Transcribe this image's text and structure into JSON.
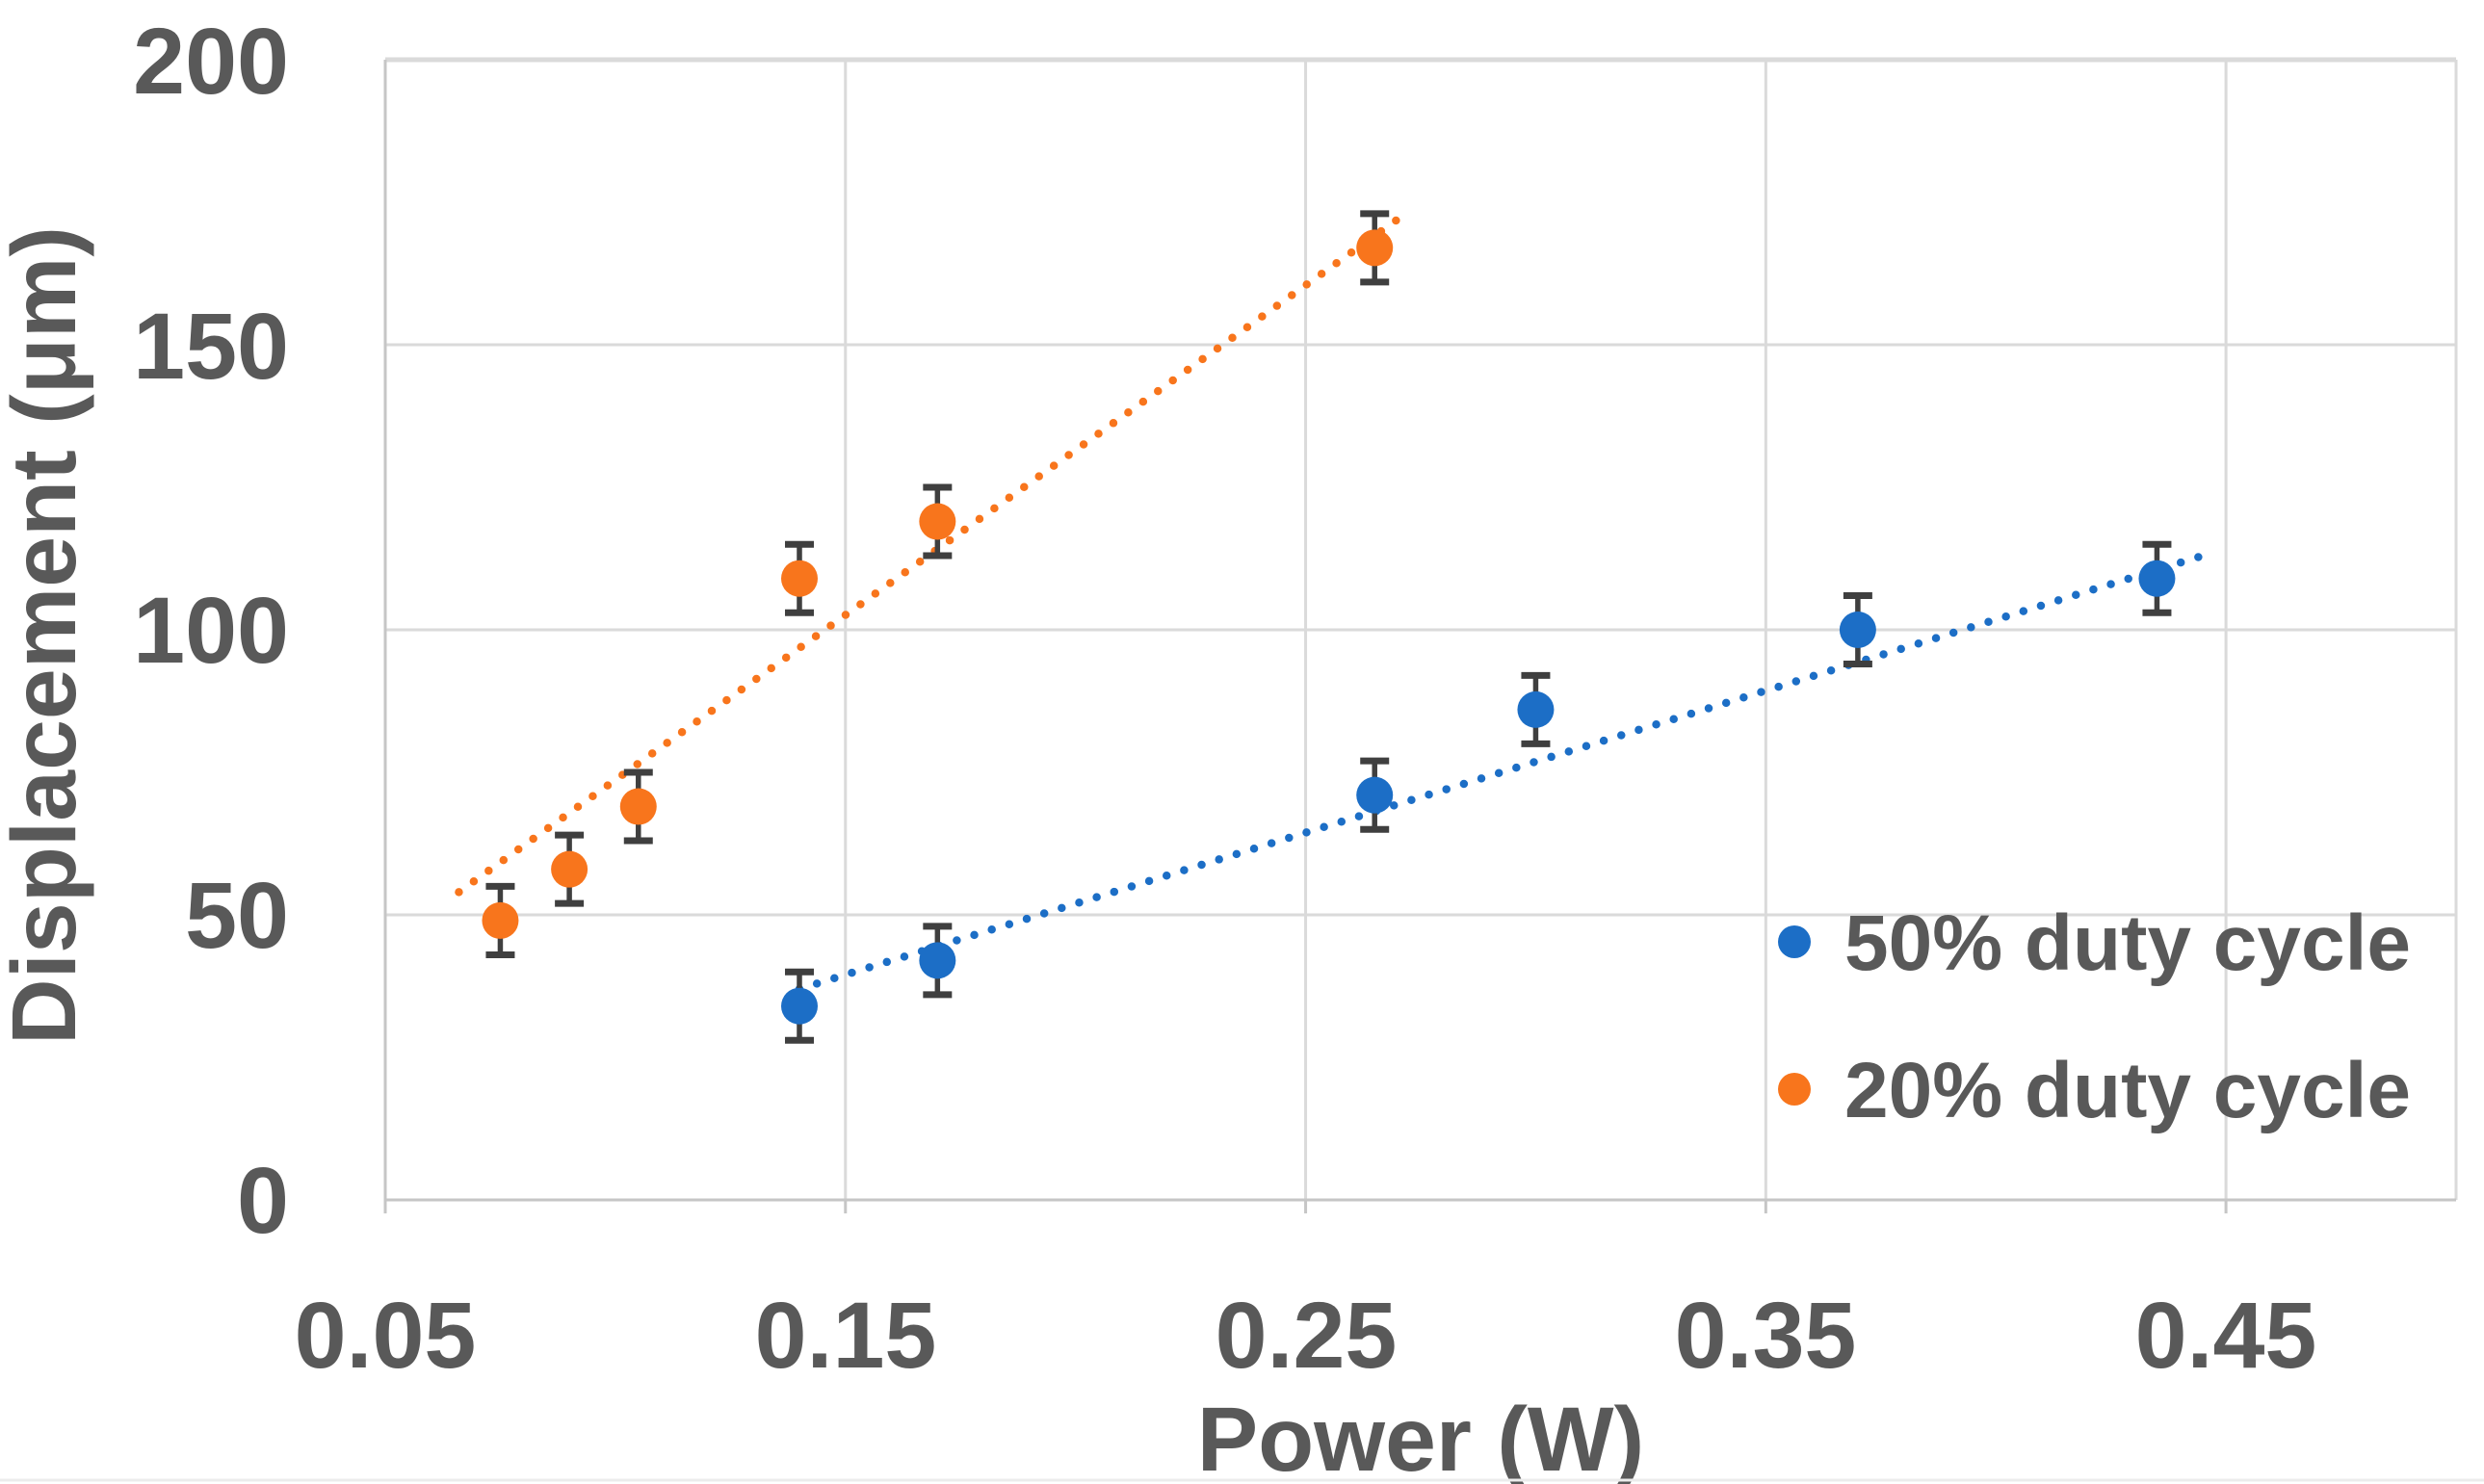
{
  "figure": {
    "colors": {
      "blue": "#1c6ec6",
      "orange": "#f8751c",
      "text": "#595959",
      "gridline": "#dadada",
      "axis": "#c6c6c6",
      "error_bar": "#3f3f3f"
    }
  },
  "legend": {
    "position": "inside-lower-right",
    "items": [
      {
        "label": "50% duty cycle",
        "series": 0
      },
      {
        "label": "20% duty cycle",
        "series": 1
      }
    ]
  },
  "chart_data": {
    "type": "scatter",
    "title": "",
    "xlabel": "Power (W)",
    "ylabel": "Displacement (μm)",
    "xlim": [
      0.05,
      0.5
    ],
    "ylim": [
      0,
      200
    ],
    "grid": true,
    "x_tick_values": [
      0.05,
      0.15,
      0.25,
      0.35,
      0.45
    ],
    "x_tick_labels": [
      "0.05",
      "0.15",
      "0.25",
      "0.35",
      "0.45"
    ],
    "y_tick_values": [
      0,
      50,
      100,
      150,
      200
    ],
    "y_tick_labels": [
      "0",
      "50",
      "100",
      "150",
      "200"
    ],
    "legend_position": "inside lower right",
    "series": [
      {
        "name": "50% duty cycle",
        "color": "#1c6ec6",
        "marker": "circle",
        "line": "dotted-trend",
        "x": [
          0.14,
          0.17,
          0.265,
          0.3,
          0.37,
          0.435
        ],
        "y": [
          34,
          42,
          71,
          86,
          100,
          109
        ],
        "y_error": 6,
        "trendline": {
          "style": "dotted",
          "x1": 0.14,
          "y1": 37,
          "x2": 0.445,
          "y2": 113
        }
      },
      {
        "name": "20% duty cycle",
        "color": "#f8751c",
        "marker": "circle",
        "line": "dotted-trend",
        "x": [
          0.075,
          0.09,
          0.105,
          0.14,
          0.17,
          0.265
        ],
        "y": [
          49,
          58,
          69,
          109,
          119,
          167
        ],
        "y_error": 6,
        "trendline": {
          "style": "dotted",
          "x1": 0.066,
          "y1": 54,
          "x2": 0.27,
          "y2": 172
        }
      }
    ]
  }
}
